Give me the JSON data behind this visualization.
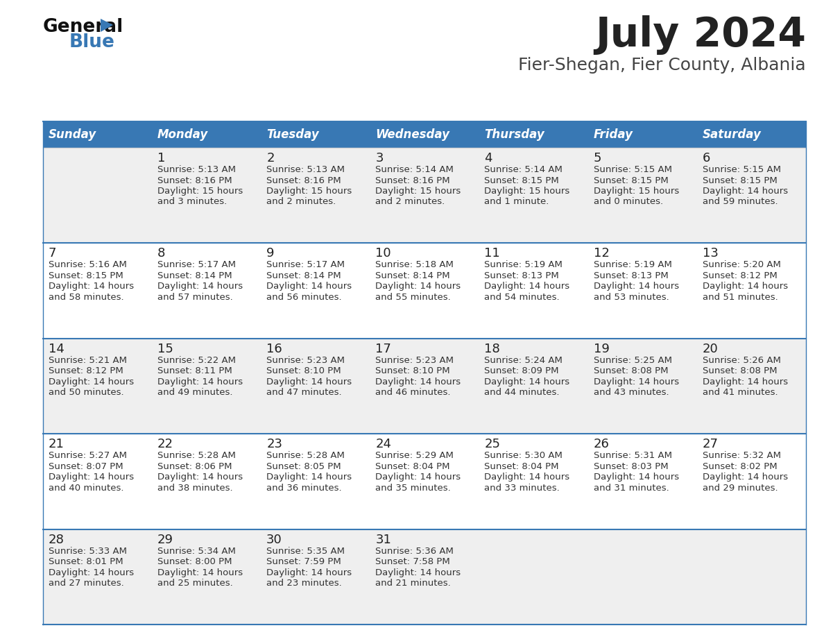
{
  "title": "July 2024",
  "subtitle": "Fier-Shegan, Fier County, Albania",
  "header_bg": "#3878B4",
  "header_text": "#FFFFFF",
  "row_bg_light": "#EFEFEF",
  "row_bg_white": "#FFFFFF",
  "day_names": [
    "Sunday",
    "Monday",
    "Tuesday",
    "Wednesday",
    "Thursday",
    "Friday",
    "Saturday"
  ],
  "separator_color": "#3878B4",
  "cell_text_color": "#333333",
  "day_num_color": "#222222",
  "title_color": "#222222",
  "subtitle_color": "#444444",
  "weeks": [
    [
      {
        "day": "",
        "sunrise": "",
        "sunset": "",
        "daylight1": "",
        "daylight2": ""
      },
      {
        "day": "1",
        "sunrise": "5:13 AM",
        "sunset": "8:16 PM",
        "daylight1": "15 hours",
        "daylight2": "and 3 minutes."
      },
      {
        "day": "2",
        "sunrise": "5:13 AM",
        "sunset": "8:16 PM",
        "daylight1": "15 hours",
        "daylight2": "and 2 minutes."
      },
      {
        "day": "3",
        "sunrise": "5:14 AM",
        "sunset": "8:16 PM",
        "daylight1": "15 hours",
        "daylight2": "and 2 minutes."
      },
      {
        "day": "4",
        "sunrise": "5:14 AM",
        "sunset": "8:15 PM",
        "daylight1": "15 hours",
        "daylight2": "and 1 minute."
      },
      {
        "day": "5",
        "sunrise": "5:15 AM",
        "sunset": "8:15 PM",
        "daylight1": "15 hours",
        "daylight2": "and 0 minutes."
      },
      {
        "day": "6",
        "sunrise": "5:15 AM",
        "sunset": "8:15 PM",
        "daylight1": "14 hours",
        "daylight2": "and 59 minutes."
      }
    ],
    [
      {
        "day": "7",
        "sunrise": "5:16 AM",
        "sunset": "8:15 PM",
        "daylight1": "14 hours",
        "daylight2": "and 58 minutes."
      },
      {
        "day": "8",
        "sunrise": "5:17 AM",
        "sunset": "8:14 PM",
        "daylight1": "14 hours",
        "daylight2": "and 57 minutes."
      },
      {
        "day": "9",
        "sunrise": "5:17 AM",
        "sunset": "8:14 PM",
        "daylight1": "14 hours",
        "daylight2": "and 56 minutes."
      },
      {
        "day": "10",
        "sunrise": "5:18 AM",
        "sunset": "8:14 PM",
        "daylight1": "14 hours",
        "daylight2": "and 55 minutes."
      },
      {
        "day": "11",
        "sunrise": "5:19 AM",
        "sunset": "8:13 PM",
        "daylight1": "14 hours",
        "daylight2": "and 54 minutes."
      },
      {
        "day": "12",
        "sunrise": "5:19 AM",
        "sunset": "8:13 PM",
        "daylight1": "14 hours",
        "daylight2": "and 53 minutes."
      },
      {
        "day": "13",
        "sunrise": "5:20 AM",
        "sunset": "8:12 PM",
        "daylight1": "14 hours",
        "daylight2": "and 51 minutes."
      }
    ],
    [
      {
        "day": "14",
        "sunrise": "5:21 AM",
        "sunset": "8:12 PM",
        "daylight1": "14 hours",
        "daylight2": "and 50 minutes."
      },
      {
        "day": "15",
        "sunrise": "5:22 AM",
        "sunset": "8:11 PM",
        "daylight1": "14 hours",
        "daylight2": "and 49 minutes."
      },
      {
        "day": "16",
        "sunrise": "5:23 AM",
        "sunset": "8:10 PM",
        "daylight1": "14 hours",
        "daylight2": "and 47 minutes."
      },
      {
        "day": "17",
        "sunrise": "5:23 AM",
        "sunset": "8:10 PM",
        "daylight1": "14 hours",
        "daylight2": "and 46 minutes."
      },
      {
        "day": "18",
        "sunrise": "5:24 AM",
        "sunset": "8:09 PM",
        "daylight1": "14 hours",
        "daylight2": "and 44 minutes."
      },
      {
        "day": "19",
        "sunrise": "5:25 AM",
        "sunset": "8:08 PM",
        "daylight1": "14 hours",
        "daylight2": "and 43 minutes."
      },
      {
        "day": "20",
        "sunrise": "5:26 AM",
        "sunset": "8:08 PM",
        "daylight1": "14 hours",
        "daylight2": "and 41 minutes."
      }
    ],
    [
      {
        "day": "21",
        "sunrise": "5:27 AM",
        "sunset": "8:07 PM",
        "daylight1": "14 hours",
        "daylight2": "and 40 minutes."
      },
      {
        "day": "22",
        "sunrise": "5:28 AM",
        "sunset": "8:06 PM",
        "daylight1": "14 hours",
        "daylight2": "and 38 minutes."
      },
      {
        "day": "23",
        "sunrise": "5:28 AM",
        "sunset": "8:05 PM",
        "daylight1": "14 hours",
        "daylight2": "and 36 minutes."
      },
      {
        "day": "24",
        "sunrise": "5:29 AM",
        "sunset": "8:04 PM",
        "daylight1": "14 hours",
        "daylight2": "and 35 minutes."
      },
      {
        "day": "25",
        "sunrise": "5:30 AM",
        "sunset": "8:04 PM",
        "daylight1": "14 hours",
        "daylight2": "and 33 minutes."
      },
      {
        "day": "26",
        "sunrise": "5:31 AM",
        "sunset": "8:03 PM",
        "daylight1": "14 hours",
        "daylight2": "and 31 minutes."
      },
      {
        "day": "27",
        "sunrise": "5:32 AM",
        "sunset": "8:02 PM",
        "daylight1": "14 hours",
        "daylight2": "and 29 minutes."
      }
    ],
    [
      {
        "day": "28",
        "sunrise": "5:33 AM",
        "sunset": "8:01 PM",
        "daylight1": "14 hours",
        "daylight2": "and 27 minutes."
      },
      {
        "day": "29",
        "sunrise": "5:34 AM",
        "sunset": "8:00 PM",
        "daylight1": "14 hours",
        "daylight2": "and 25 minutes."
      },
      {
        "day": "30",
        "sunrise": "5:35 AM",
        "sunset": "7:59 PM",
        "daylight1": "14 hours",
        "daylight2": "and 23 minutes."
      },
      {
        "day": "31",
        "sunrise": "5:36 AM",
        "sunset": "7:58 PM",
        "daylight1": "14 hours",
        "daylight2": "and 21 minutes."
      },
      {
        "day": "",
        "sunrise": "",
        "sunset": "",
        "daylight1": "",
        "daylight2": ""
      },
      {
        "day": "",
        "sunrise": "",
        "sunset": "",
        "daylight1": "",
        "daylight2": ""
      },
      {
        "day": "",
        "sunrise": "",
        "sunset": "",
        "daylight1": "",
        "daylight2": ""
      }
    ]
  ]
}
